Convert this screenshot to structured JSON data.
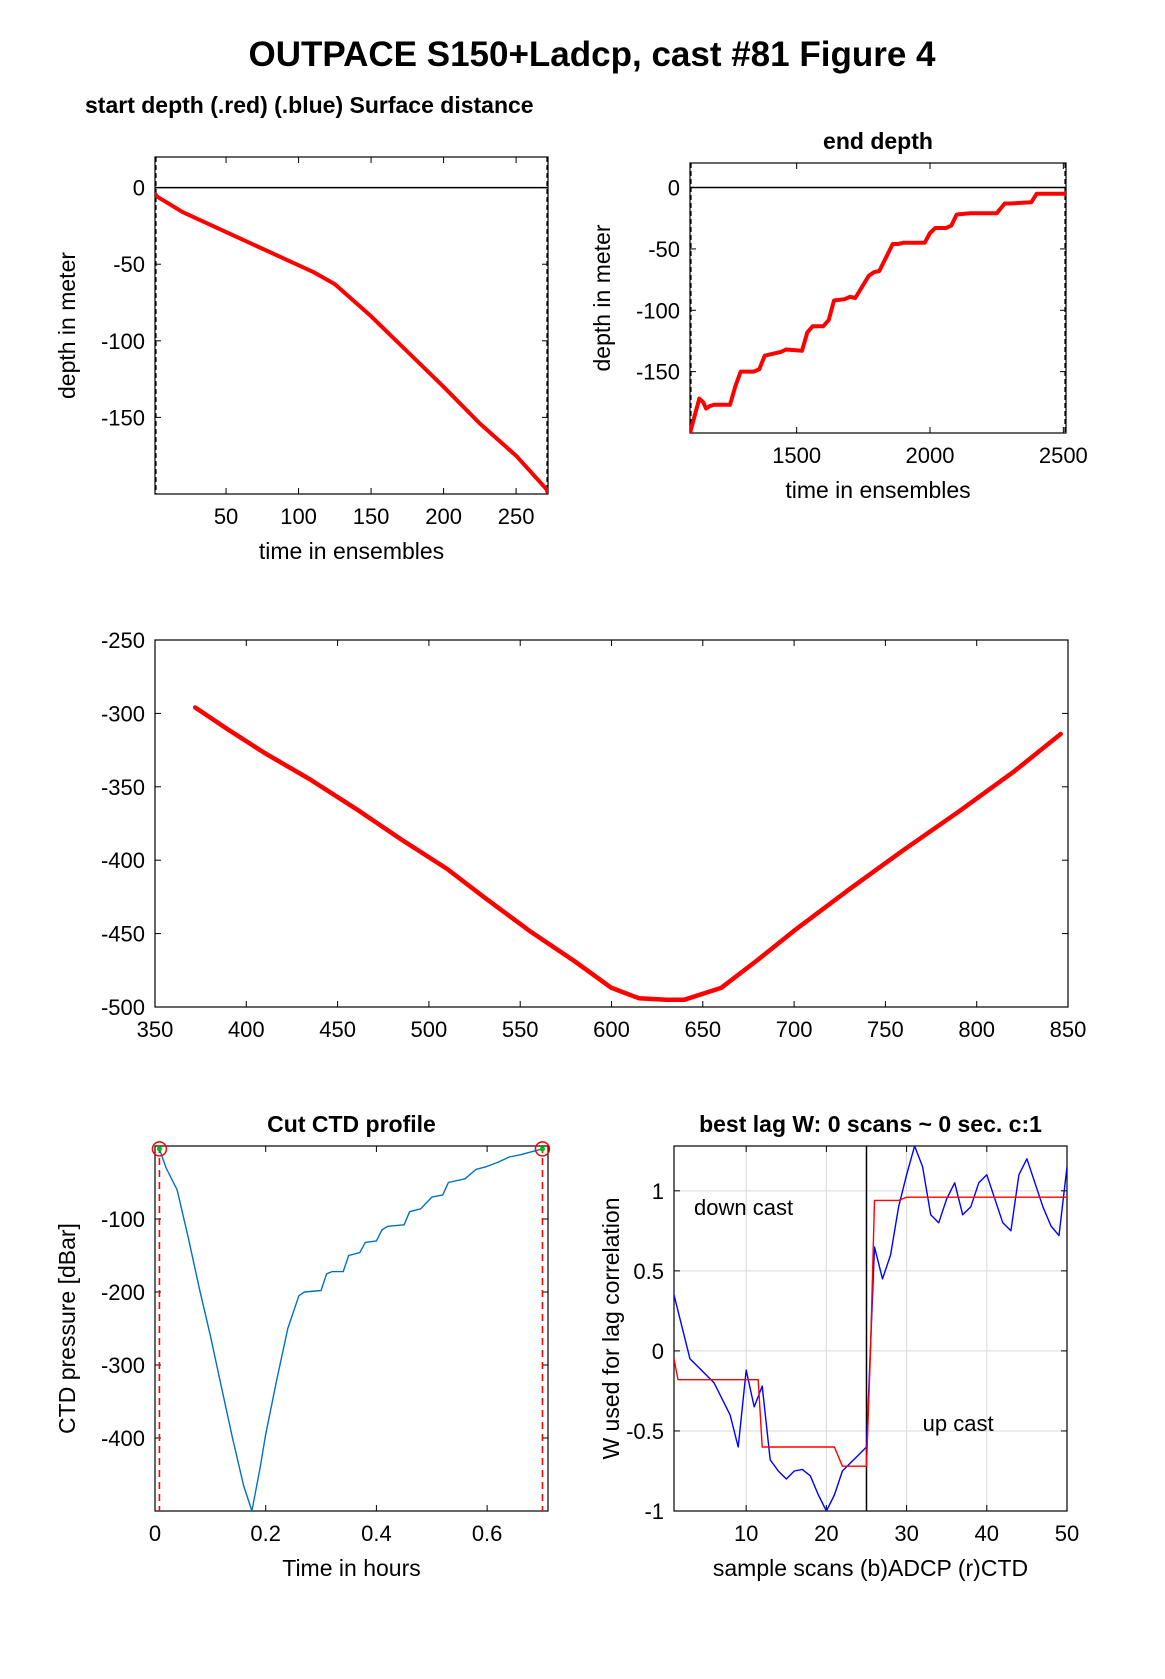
{
  "figure": {
    "title": "OUTPACE S150+Ladcp, cast #81   Figure 4"
  },
  "chart_data": [
    {
      "id": "p1",
      "type": "line",
      "title": "start depth (.red) (.blue) Surface distance",
      "xlabel": "time in ensembles",
      "ylabel": "depth in meter",
      "xlim": [
        1,
        272
      ],
      "ylim": [
        -200,
        20
      ],
      "xticks": [
        50,
        100,
        150,
        200,
        250
      ],
      "yticks": [
        0,
        -50,
        -100,
        -150
      ],
      "grid": false,
      "reference_line_y": 0,
      "series": [
        {
          "color": "#ff0000",
          "x": [
            1,
            20,
            50,
            80,
            110,
            125,
            150,
            175,
            200,
            225,
            250,
            272
          ],
          "y": [
            -5,
            -16,
            -29,
            -42,
            -55,
            -63,
            -84,
            -107,
            -130,
            -154,
            -175,
            -198
          ]
        }
      ]
    },
    {
      "id": "p2",
      "type": "line",
      "title": "end depth",
      "xlabel": "time in ensembles",
      "ylabel": "depth in meter",
      "xlim": [
        1100,
        2510
      ],
      "ylim": [
        -200,
        20
      ],
      "xticks": [
        1500,
        2000,
        2500
      ],
      "yticks": [
        0,
        -50,
        -100,
        -150
      ],
      "grid": false,
      "reference_line_y": 0,
      "series": [
        {
          "color": "#ff0000",
          "x": [
            1100,
            1135,
            1150,
            1160,
            1175,
            1190,
            1250,
            1270,
            1290,
            1340,
            1360,
            1380,
            1420,
            1440,
            1460,
            1520,
            1540,
            1560,
            1600,
            1620,
            1640,
            1680,
            1700,
            1720,
            1770,
            1790,
            1810,
            1860,
            1880,
            1900,
            1980,
            2000,
            2020,
            2060,
            2080,
            2100,
            2150,
            2170,
            2190,
            2250,
            2280,
            2300,
            2380,
            2400,
            2420,
            2460,
            2480,
            2510
          ],
          "y": [
            -200,
            -172,
            -175,
            -180,
            -178,
            -177,
            -177,
            -162,
            -150,
            -150,
            -148,
            -137,
            -135,
            -134,
            -132,
            -133,
            -118,
            -113,
            -113,
            -108,
            -92,
            -91,
            -89,
            -90,
            -72,
            -69,
            -68,
            -46,
            -46,
            -45,
            -45,
            -37,
            -33,
            -33,
            -31,
            -22,
            -21,
            -21,
            -21,
            -21,
            -13,
            -13,
            -12,
            -5,
            -5,
            -5,
            -5,
            -5
          ]
        }
      ]
    },
    {
      "id": "p3",
      "type": "line",
      "title": "",
      "xlabel": "",
      "ylabel": "",
      "xlim": [
        350,
        850
      ],
      "ylim": [
        -500,
        -250
      ],
      "xticks": [
        350,
        400,
        450,
        500,
        550,
        600,
        650,
        700,
        750,
        800,
        850
      ],
      "yticks": [
        -250,
        -300,
        -350,
        -400,
        -450,
        -500
      ],
      "grid": false,
      "series": [
        {
          "color": "#ff0000",
          "x": [
            372,
            390,
            410,
            435,
            460,
            485,
            510,
            530,
            555,
            580,
            600,
            615,
            630,
            640,
            660,
            680,
            700,
            730,
            760,
            790,
            820,
            846
          ],
          "y": [
            -296,
            -311,
            -327,
            -345,
            -365,
            -386,
            -406,
            -425,
            -448,
            -469,
            -487,
            -494,
            -495,
            -495,
            -487,
            -468,
            -448,
            -420,
            -393,
            -367,
            -340,
            -314
          ]
        }
      ]
    },
    {
      "id": "p4",
      "type": "line",
      "title": "Cut CTD profile",
      "xlabel": "Time in hours",
      "ylabel": "CTD pressure [dBar]",
      "xlim": [
        0,
        0.71
      ],
      "ylim": [
        -500,
        0
      ],
      "xticks": [
        0,
        0.2,
        0.4,
        0.6
      ],
      "yticks": [
        -100,
        -200,
        -300,
        -400
      ],
      "grid": false,
      "vlines_x": [
        0.008,
        0.7
      ],
      "markers": [
        {
          "x": 0.008,
          "y": -4
        },
        {
          "x": 0.7,
          "y": -4
        }
      ],
      "series": [
        {
          "color": "#0072bd",
          "x": [
            0.008,
            0.02,
            0.04,
            0.06,
            0.08,
            0.1,
            0.12,
            0.14,
            0.16,
            0.175,
            0.19,
            0.2,
            0.22,
            0.24,
            0.26,
            0.27,
            0.3,
            0.31,
            0.32,
            0.34,
            0.35,
            0.37,
            0.38,
            0.4,
            0.41,
            0.42,
            0.45,
            0.46,
            0.48,
            0.5,
            0.52,
            0.53,
            0.56,
            0.58,
            0.6,
            0.62,
            0.64,
            0.66,
            0.68,
            0.7
          ],
          "y": [
            -4,
            -30,
            -60,
            -125,
            -195,
            -260,
            -330,
            -400,
            -465,
            -500,
            -440,
            -395,
            -320,
            -250,
            -205,
            -200,
            -198,
            -175,
            -172,
            -172,
            -150,
            -146,
            -132,
            -130,
            -115,
            -110,
            -108,
            -90,
            -86,
            -70,
            -67,
            -50,
            -45,
            -32,
            -28,
            -22,
            -15,
            -12,
            -8,
            -4
          ]
        }
      ]
    },
    {
      "id": "p5",
      "type": "line",
      "title": "best lag W: 0 scans ~ 0 sec.  c:1",
      "xlabel": "sample scans (b)ADCP (r)CTD",
      "ylabel": "W used for lag correlation",
      "xlim": [
        1,
        50
      ],
      "ylim": [
        -1,
        1.28
      ],
      "xticks": [
        10,
        20,
        30,
        40,
        50
      ],
      "yticks": [
        1,
        0.5,
        0,
        -0.5,
        -1
      ],
      "grid": true,
      "vline_x": 25,
      "annotations": [
        {
          "text": "down cast",
          "x": 3.5,
          "y": 0.85
        },
        {
          "text": "up cast",
          "x": 32,
          "y": -0.5
        }
      ],
      "series": [
        {
          "name": "ADCP",
          "color": "#0000ff",
          "x": [
            1,
            2,
            3,
            4,
            5,
            6,
            7,
            8,
            9,
            10,
            11,
            12,
            13,
            14,
            15,
            16,
            17,
            18,
            19,
            20,
            21,
            22,
            23,
            24,
            25,
            26,
            27,
            28,
            29,
            30,
            31,
            32,
            33,
            34,
            35,
            36,
            37,
            38,
            39,
            40,
            41,
            42,
            43,
            44,
            45,
            46,
            47,
            48,
            49,
            50
          ],
          "y": [
            0.35,
            0.15,
            -0.05,
            -0.1,
            -0.15,
            -0.2,
            -0.3,
            -0.4,
            -0.6,
            -0.12,
            -0.35,
            -0.22,
            -0.68,
            -0.75,
            -0.8,
            -0.75,
            -0.74,
            -0.78,
            -0.9,
            -1.0,
            -0.9,
            -0.75,
            -0.7,
            -0.65,
            -0.6,
            0.65,
            0.45,
            0.6,
            0.9,
            1.1,
            1.28,
            1.15,
            0.85,
            0.8,
            0.95,
            1.05,
            0.85,
            0.9,
            1.05,
            1.1,
            0.95,
            0.8,
            0.75,
            1.1,
            1.2,
            1.05,
            0.9,
            0.78,
            0.72,
            1.15
          ]
        },
        {
          "name": "CTD",
          "color": "#ff0000",
          "x": [
            1,
            1.5,
            2,
            11.5,
            12,
            21,
            22,
            25,
            25.5,
            26,
            27,
            29,
            30,
            50
          ],
          "y": [
            -0.05,
            -0.18,
            -0.18,
            -0.18,
            -0.6,
            -0.6,
            -0.72,
            -0.72,
            0.0,
            0.94,
            0.94,
            0.94,
            0.96,
            0.96
          ]
        }
      ]
    }
  ]
}
